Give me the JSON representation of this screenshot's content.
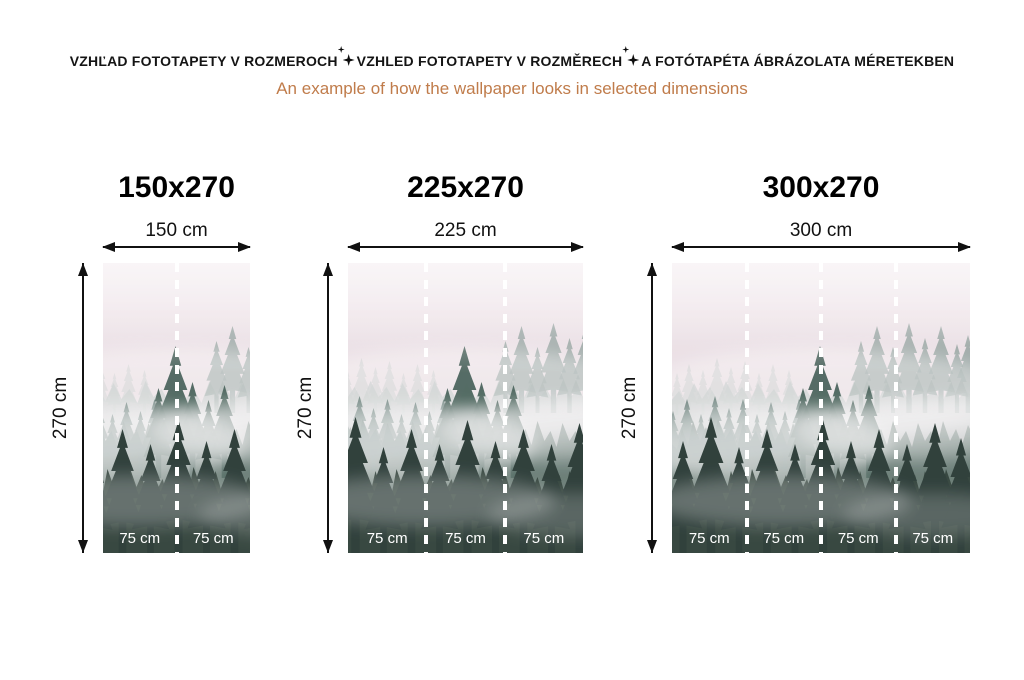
{
  "header": {
    "titles": [
      "VZHĽAD FOTOTAPETY V ROZMEROCH",
      "VZHLED FOTOTAPETY V ROZMĚRECH",
      "A FOTÓTAPÉTA ÁBRÁZOLATA MÉRETEKBEN"
    ],
    "separator_icon": "sparkle-icon",
    "subtitle": "An example of how the wallpaper looks in selected dimensions"
  },
  "panels": [
    {
      "title": "150x270",
      "width_label": "150 cm",
      "height_label": "270 cm",
      "segments": [
        "75 cm",
        "75 cm"
      ]
    },
    {
      "title": "225x270",
      "width_label": "225 cm",
      "height_label": "270 cm",
      "segments": [
        "75 cm",
        "75 cm",
        "75 cm"
      ]
    },
    {
      "title": "300x270",
      "width_label": "300 cm",
      "height_label": "270 cm",
      "segments": [
        "75 cm",
        "75 cm",
        "75 cm",
        "75 cm"
      ]
    }
  ],
  "colors": {
    "heading": "#141414",
    "subtitle": "#c07c4b",
    "arrow": "#111111",
    "segment_label": "#ffffff",
    "fog_light": "#f0e7eb",
    "fog_dark": "#c6bac2",
    "tree_dark": "#1c302a"
  }
}
